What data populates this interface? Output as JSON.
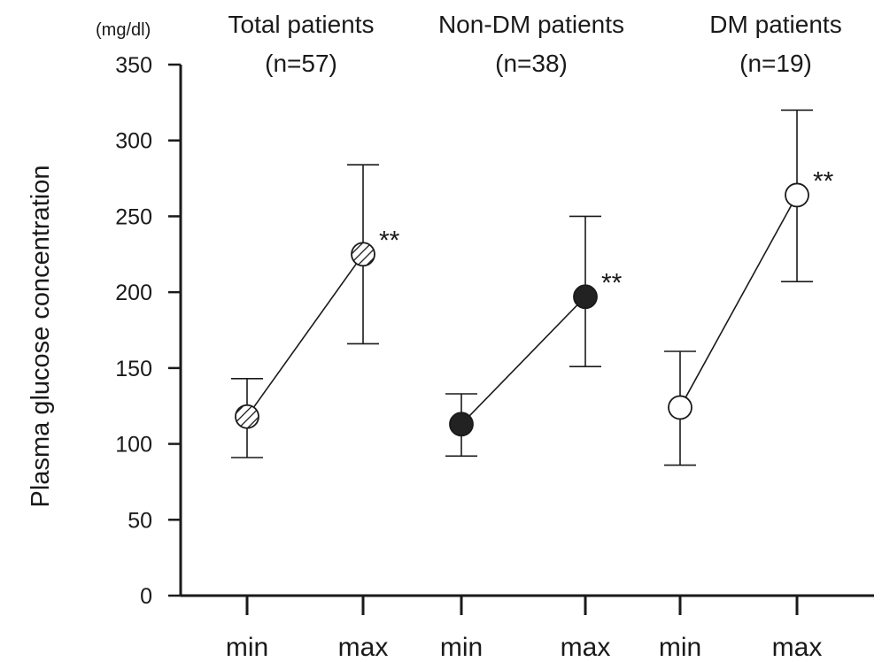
{
  "chart_data": {
    "type": "scatter",
    "ylabel": "Plasma glucose concentration",
    "yunit": "(mg/dl)",
    "ylim": [
      0,
      350
    ],
    "yticks": [
      0,
      50,
      100,
      150,
      200,
      250,
      300,
      350
    ],
    "grid": false,
    "x_tick_labels": [
      "min",
      "max",
      "min",
      "max",
      "min",
      "max"
    ],
    "groups": [
      {
        "title": "Total patients",
        "subtitle": "(n=57)",
        "marker": "hatched",
        "points": [
          {
            "x": "min",
            "mean": 118,
            "sd_low": 91,
            "sd_high": 143
          },
          {
            "x": "max",
            "mean": 225,
            "sd_low": 166,
            "sd_high": 284
          }
        ],
        "significance": "**"
      },
      {
        "title": "Non-DM patients",
        "subtitle": "(n=38)",
        "marker": "filled",
        "points": [
          {
            "x": "min",
            "mean": 113,
            "sd_low": 92,
            "sd_high": 133
          },
          {
            "x": "max",
            "mean": 197,
            "sd_low": 151,
            "sd_high": 250
          }
        ],
        "significance": "**"
      },
      {
        "title": "DM patients",
        "subtitle": "(n=19)",
        "marker": "open",
        "points": [
          {
            "x": "min",
            "mean": 124,
            "sd_low": 86,
            "sd_high": 161
          },
          {
            "x": "max",
            "mean": 264,
            "sd_low": 207,
            "sd_high": 320
          }
        ],
        "significance": "**"
      }
    ]
  }
}
